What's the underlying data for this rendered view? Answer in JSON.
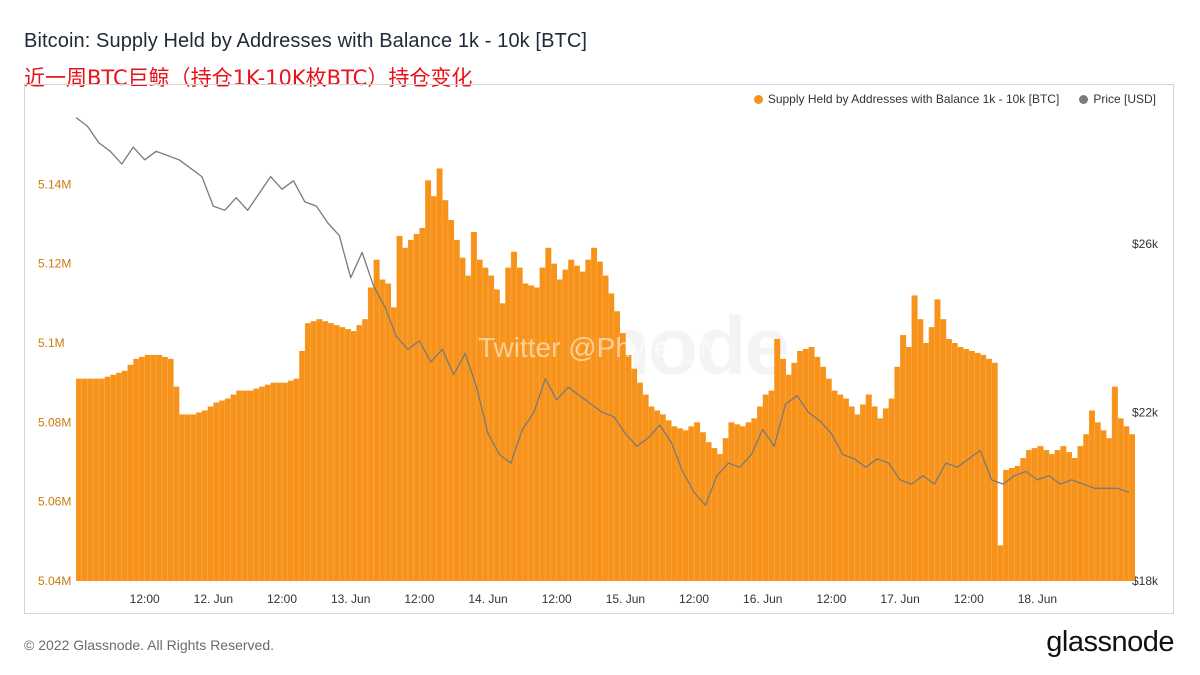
{
  "header": {
    "title": "Bitcoin: Supply Held by Addresses with Balance 1k - 10k [BTC]",
    "subtitle": "近一周BTC巨鲸（持仓1K-10K枚BTC）持仓变化"
  },
  "legend": {
    "supply_label": "Supply Held by Addresses with Balance 1k - 10k [BTC]",
    "price_label": "Price [USD]"
  },
  "watermark": "Twitter @Phyrex_Ni",
  "background_logo": "node",
  "footer": {
    "copyright": "© 2022 Glassnode. All Rights Reserved.",
    "logo": "glassnode"
  },
  "colors": {
    "supply": "#f7931a",
    "price": "#7a7a7a",
    "subtitle": "#e8131a"
  },
  "chart_data": {
    "type": "bar",
    "title": "Bitcoin: Supply Held by Addresses with Balance 1k - 10k [BTC]",
    "x_ticks": [
      "12:00",
      "12. Jun",
      "12:00",
      "13. Jun",
      "12:00",
      "14. Jun",
      "12:00",
      "15. Jun",
      "12:00",
      "16. Jun",
      "12:00",
      "17. Jun",
      "12:00",
      "18. Jun"
    ],
    "y_left": {
      "min": 5.04,
      "max": 5.16,
      "ticks": [
        "5.04M",
        "5.06M",
        "5.08M",
        "5.1M",
        "5.12M",
        "5.14M"
      ],
      "tick_values": [
        5.04,
        5.06,
        5.08,
        5.1,
        5.12,
        5.14
      ]
    },
    "y_right": {
      "min": 18,
      "max": 29.3,
      "ticks": [
        "$18k",
        "$22k",
        "$26k"
      ],
      "tick_values": [
        18,
        22,
        26
      ]
    },
    "x_range_hours": [
      0,
      168
    ],
    "series": [
      {
        "name": "Supply Held by Addresses with Balance 1k - 10k [BTC]",
        "type": "bar",
        "axis": "left",
        "unit": "M BTC",
        "points": [
          [
            0,
            5.091
          ],
          [
            4,
            5.091
          ],
          [
            6,
            5.092
          ],
          [
            8,
            5.093
          ],
          [
            10,
            5.096
          ],
          [
            12,
            5.097
          ],
          [
            14,
            5.097
          ],
          [
            16,
            5.096
          ],
          [
            18,
            5.082
          ],
          [
            20,
            5.082
          ],
          [
            22,
            5.083
          ],
          [
            24,
            5.085
          ],
          [
            26,
            5.086
          ],
          [
            28,
            5.088
          ],
          [
            30,
            5.088
          ],
          [
            32,
            5.089
          ],
          [
            34,
            5.09
          ],
          [
            36,
            5.09
          ],
          [
            38,
            5.091
          ],
          [
            40,
            5.105
          ],
          [
            42,
            5.106
          ],
          [
            44,
            5.105
          ],
          [
            46,
            5.104
          ],
          [
            48,
            5.103
          ],
          [
            50,
            5.106
          ],
          [
            51,
            5.114
          ],
          [
            52,
            5.121
          ],
          [
            53,
            5.116
          ],
          [
            54,
            5.115
          ],
          [
            55,
            5.109
          ],
          [
            56,
            5.127
          ],
          [
            57,
            5.124
          ],
          [
            58,
            5.126
          ],
          [
            60,
            5.129
          ],
          [
            61,
            5.141
          ],
          [
            62,
            5.137
          ],
          [
            63,
            5.144
          ],
          [
            64,
            5.136
          ],
          [
            65,
            5.131
          ],
          [
            66,
            5.126
          ],
          [
            68,
            5.117
          ],
          [
            69,
            5.128
          ],
          [
            70,
            5.121
          ],
          [
            72,
            5.117
          ],
          [
            74,
            5.11
          ],
          [
            75,
            5.119
          ],
          [
            76,
            5.123
          ],
          [
            78,
            5.115
          ],
          [
            80,
            5.114
          ],
          [
            82,
            5.124
          ],
          [
            84,
            5.116
          ],
          [
            86,
            5.121
          ],
          [
            88,
            5.118
          ],
          [
            90,
            5.124
          ],
          [
            92,
            5.117
          ],
          [
            94,
            5.108
          ],
          [
            96,
            5.097
          ],
          [
            98,
            5.09
          ],
          [
            100,
            5.084
          ],
          [
            102,
            5.082
          ],
          [
            104,
            5.079
          ],
          [
            106,
            5.078
          ],
          [
            108,
            5.08
          ],
          [
            110,
            5.075
          ],
          [
            112,
            5.072
          ],
          [
            114,
            5.08
          ],
          [
            116,
            5.079
          ],
          [
            118,
            5.081
          ],
          [
            120,
            5.087
          ],
          [
            121,
            5.088
          ],
          [
            122,
            5.101
          ],
          [
            123,
            5.096
          ],
          [
            124,
            5.092
          ],
          [
            126,
            5.098
          ],
          [
            128,
            5.099
          ],
          [
            130,
            5.094
          ],
          [
            132,
            5.088
          ],
          [
            134,
            5.086
          ],
          [
            136,
            5.082
          ],
          [
            138,
            5.087
          ],
          [
            140,
            5.081
          ],
          [
            142,
            5.086
          ],
          [
            144,
            5.102
          ],
          [
            145,
            5.099
          ],
          [
            146,
            5.112
          ],
          [
            148,
            5.1
          ],
          [
            149,
            5.104
          ],
          [
            150,
            5.111
          ],
          [
            152,
            5.101
          ],
          [
            154,
            5.099
          ],
          [
            156,
            5.098
          ],
          [
            158,
            5.097
          ],
          [
            160,
            5.095
          ],
          [
            161,
            5.049
          ],
          [
            162,
            5.068
          ],
          [
            164,
            5.069
          ],
          [
            166,
            5.073
          ],
          [
            168,
            5.074
          ],
          [
            170,
            5.072
          ],
          [
            172,
            5.074
          ],
          [
            174,
            5.071
          ],
          [
            175,
            5.074
          ],
          [
            176,
            5.077
          ],
          [
            177,
            5.083
          ],
          [
            178,
            5.08
          ],
          [
            180,
            5.076
          ],
          [
            181,
            5.089
          ],
          [
            182,
            5.081
          ],
          [
            184,
            5.077
          ]
        ]
      },
      {
        "name": "Price [USD]",
        "type": "line",
        "axis": "right",
        "unit": "k USD",
        "points": [
          [
            0,
            29.0
          ],
          [
            2,
            28.8
          ],
          [
            4,
            28.4
          ],
          [
            6,
            28.2
          ],
          [
            8,
            27.9
          ],
          [
            10,
            28.3
          ],
          [
            12,
            28.0
          ],
          [
            14,
            28.2
          ],
          [
            16,
            28.1
          ],
          [
            18,
            28.0
          ],
          [
            20,
            27.8
          ],
          [
            22,
            27.6
          ],
          [
            24,
            26.9
          ],
          [
            26,
            26.8
          ],
          [
            28,
            27.1
          ],
          [
            30,
            26.8
          ],
          [
            32,
            27.2
          ],
          [
            34,
            27.6
          ],
          [
            36,
            27.3
          ],
          [
            38,
            27.5
          ],
          [
            40,
            27.0
          ],
          [
            42,
            26.9
          ],
          [
            44,
            26.5
          ],
          [
            46,
            26.2
          ],
          [
            48,
            25.2
          ],
          [
            50,
            25.8
          ],
          [
            52,
            25.0
          ],
          [
            54,
            24.5
          ],
          [
            56,
            23.8
          ],
          [
            58,
            23.5
          ],
          [
            60,
            23.7
          ],
          [
            62,
            23.2
          ],
          [
            64,
            23.5
          ],
          [
            66,
            22.9
          ],
          [
            68,
            23.4
          ],
          [
            70,
            22.6
          ],
          [
            72,
            21.5
          ],
          [
            74,
            21.0
          ],
          [
            76,
            20.8
          ],
          [
            78,
            21.6
          ],
          [
            80,
            22.0
          ],
          [
            82,
            22.8
          ],
          [
            84,
            22.3
          ],
          [
            86,
            22.6
          ],
          [
            88,
            22.4
          ],
          [
            90,
            22.2
          ],
          [
            92,
            22.0
          ],
          [
            94,
            21.9
          ],
          [
            96,
            21.5
          ],
          [
            98,
            21.2
          ],
          [
            100,
            21.4
          ],
          [
            102,
            21.7
          ],
          [
            104,
            21.3
          ],
          [
            106,
            20.6
          ],
          [
            108,
            20.1
          ],
          [
            110,
            19.8
          ],
          [
            112,
            20.5
          ],
          [
            114,
            20.8
          ],
          [
            116,
            20.7
          ],
          [
            118,
            21.0
          ],
          [
            120,
            21.6
          ],
          [
            122,
            21.2
          ],
          [
            124,
            22.2
          ],
          [
            126,
            22.4
          ],
          [
            128,
            22.0
          ],
          [
            130,
            21.8
          ],
          [
            132,
            21.5
          ],
          [
            134,
            21.0
          ],
          [
            136,
            20.9
          ],
          [
            138,
            20.7
          ],
          [
            140,
            20.9
          ],
          [
            142,
            20.8
          ],
          [
            144,
            20.4
          ],
          [
            146,
            20.3
          ],
          [
            148,
            20.5
          ],
          [
            150,
            20.3
          ],
          [
            152,
            20.8
          ],
          [
            154,
            20.7
          ],
          [
            156,
            20.9
          ],
          [
            158,
            21.1
          ],
          [
            160,
            20.4
          ],
          [
            162,
            20.3
          ],
          [
            164,
            20.5
          ],
          [
            166,
            20.6
          ],
          [
            168,
            20.4
          ],
          [
            170,
            20.5
          ],
          [
            172,
            20.3
          ],
          [
            174,
            20.4
          ],
          [
            176,
            20.3
          ],
          [
            178,
            20.2
          ],
          [
            180,
            20.2
          ],
          [
            182,
            20.2
          ],
          [
            184,
            20.1
          ]
        ]
      }
    ]
  }
}
